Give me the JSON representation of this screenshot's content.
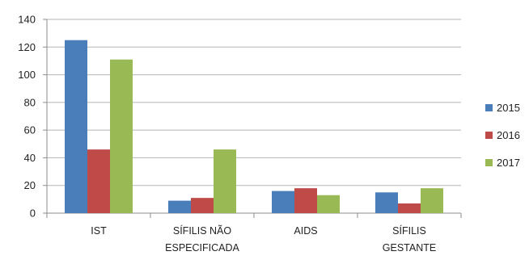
{
  "chart_data": {
    "type": "bar",
    "categories": [
      [
        "IST"
      ],
      [
        "SÍFILIS NÃO",
        "ESPECIFICADA"
      ],
      [
        "AIDS"
      ],
      [
        "SÍFILIS",
        "GESTANTE"
      ]
    ],
    "series": [
      {
        "name": "2015",
        "color": "#4a7ebb",
        "values": [
          125,
          9,
          16,
          15
        ]
      },
      {
        "name": "2016",
        "color": "#be4b48",
        "values": [
          46,
          11,
          18,
          7
        ]
      },
      {
        "name": "2017",
        "color": "#98b954",
        "values": [
          111,
          46,
          13,
          18
        ]
      }
    ],
    "ylim": [
      0,
      140
    ],
    "yticks": [
      0,
      20,
      40,
      60,
      80,
      100,
      120,
      140
    ],
    "grid": true,
    "legend": "right",
    "title": "",
    "xlabel": "",
    "ylabel": ""
  }
}
